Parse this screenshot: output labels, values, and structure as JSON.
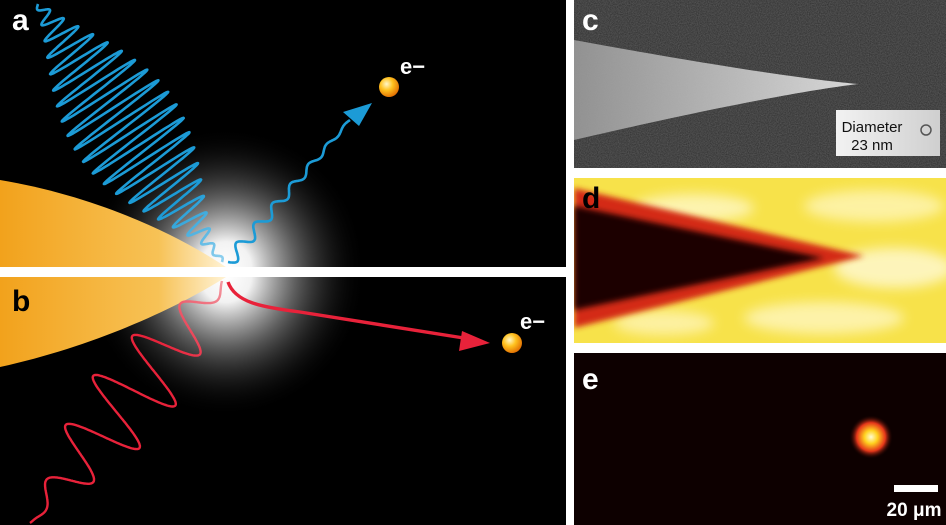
{
  "panels": {
    "a": {
      "label": "a",
      "electron": "e−"
    },
    "b": {
      "label": "b",
      "electron": "e−"
    },
    "c": {
      "label": "c",
      "inset_line1": "Diameter",
      "inset_line2": "23 nm"
    },
    "d": {
      "label": "d"
    },
    "e": {
      "label": "e",
      "scale_bar": "20 μm"
    }
  },
  "colors": {
    "blue_wave": "#1c9bd6",
    "red_wave": "#e8223a",
    "tip_orange": "#f2a21c",
    "background": "#000000",
    "divider": "#ffffff"
  }
}
